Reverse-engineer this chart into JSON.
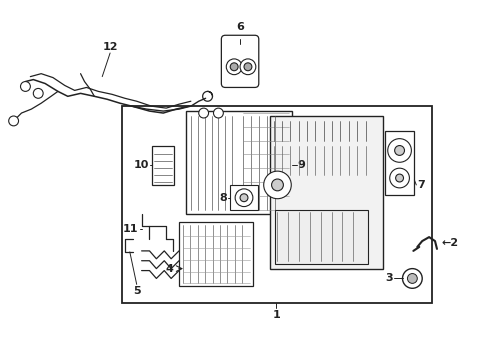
{
  "background_color": "#ffffff",
  "line_color": "#222222",
  "fig_width": 4.89,
  "fig_height": 3.6,
  "dpi": 100
}
